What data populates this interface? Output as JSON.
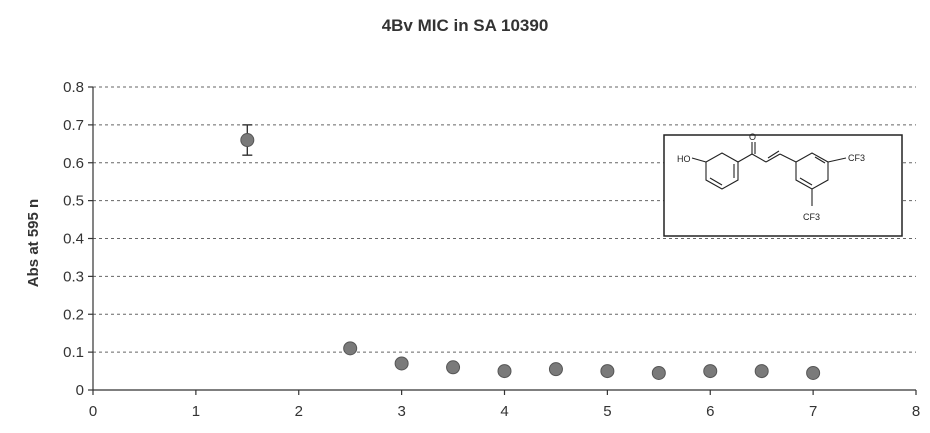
{
  "chart_data": {
    "type": "scatter",
    "title": "4Bv MIC in SA 10390",
    "xlabel": "",
    "ylabel": "Abs at 595 n",
    "xlim": [
      0,
      8
    ],
    "ylim": [
      0,
      0.8
    ],
    "x_ticks": [
      "0",
      "1",
      "2",
      "3",
      "4",
      "5",
      "6",
      "7",
      "8"
    ],
    "y_ticks": [
      "0",
      "0.1",
      "0.2",
      "0.3",
      "0.4",
      "0.5",
      "0.6",
      "0.7",
      "0.8"
    ],
    "grid": "horizontal-dashed",
    "series": [
      {
        "x": [
          1.5,
          2.5,
          3.0,
          3.5,
          4.0,
          4.5,
          5.0,
          5.5,
          6.0,
          6.5,
          7.0
        ],
        "y": [
          0.66,
          0.11,
          0.07,
          0.06,
          0.05,
          0.055,
          0.05,
          0.045,
          0.05,
          0.05,
          0.045
        ],
        "error": [
          0.04,
          0,
          0,
          0,
          0,
          0,
          0,
          0,
          0,
          0,
          0
        ]
      }
    ],
    "inset": {
      "description": "chemical structure",
      "labels": [
        "HO",
        "O",
        "CF3",
        "CF3"
      ]
    },
    "colors": {
      "marker": "#7a7a7a",
      "grid": "#666666"
    }
  }
}
